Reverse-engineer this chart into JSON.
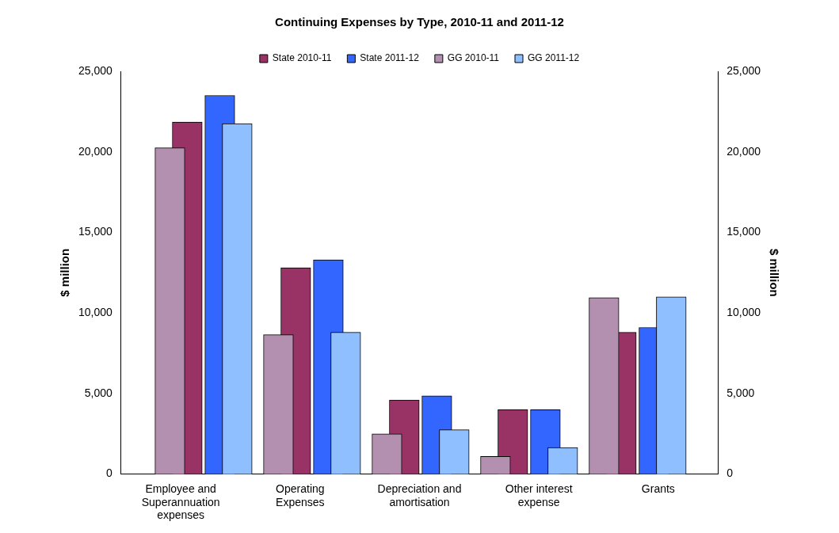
{
  "chart_data": {
    "type": "bar",
    "title": "Continuing Expenses by Type, 2010-11 and 2011-12",
    "ylabel": "$ million",
    "y2label": "$ million",
    "categories": [
      "Employee and Superannuation expenses",
      "Operating Expenses",
      "Depreciation and amortisation",
      "Other interest expense",
      "Grants"
    ],
    "series": [
      {
        "name": "State 2010-11",
        "color": "#993366",
        "values": [
          21850,
          12800,
          4600,
          4000,
          8800
        ]
      },
      {
        "name": "State 2011-12",
        "color": "#3366ff",
        "values": [
          23500,
          13300,
          4850,
          4000,
          9100
        ]
      },
      {
        "name": "GG 2010-11",
        "color": "#b490b0",
        "values": [
          20250,
          8650,
          2500,
          1100,
          10950
        ]
      },
      {
        "name": "GG 2011-12",
        "color": "#8fbfff",
        "values": [
          21750,
          8800,
          2750,
          1650,
          11000
        ]
      }
    ],
    "ylim": [
      0,
      25000
    ],
    "yticks": [
      {
        "value": 0,
        "label": "0"
      },
      {
        "value": 5000,
        "label": "5,000"
      },
      {
        "value": 10000,
        "label": "10,000"
      },
      {
        "value": 15000,
        "label": "15,000"
      },
      {
        "value": 20000,
        "label": "20,000"
      },
      {
        "value": 25000,
        "label": "25,000"
      }
    ],
    "y2lim": [
      0,
      25000
    ],
    "y2ticks": [
      {
        "value": 0,
        "label": "0"
      },
      {
        "value": 5000,
        "label": "5,000"
      },
      {
        "value": 10000,
        "label": "10,000"
      },
      {
        "value": 15000,
        "label": "15,000"
      },
      {
        "value": 20000,
        "label": "20,000"
      },
      {
        "value": 25000,
        "label": "25,000"
      }
    ],
    "grid": false,
    "legend": "top"
  }
}
